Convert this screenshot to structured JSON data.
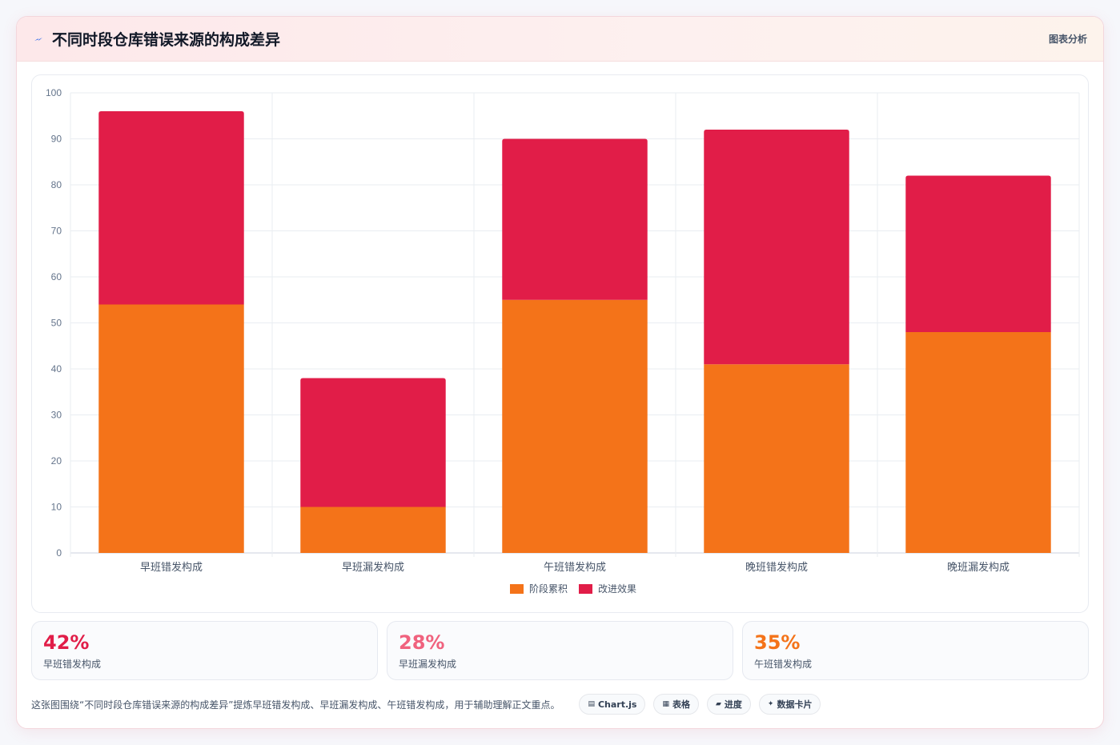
{
  "header": {
    "title": "不同时段仓库错误来源的构成差异",
    "tag": "图表分析",
    "accent": "#2563eb"
  },
  "chart_data": {
    "type": "bar",
    "stacked": true,
    "categories": [
      "早班错发构成",
      "早班漏发构成",
      "午班错发构成",
      "晚班错发构成",
      "晚班漏发构成"
    ],
    "series": [
      {
        "name": "阶段累积",
        "color": "#f47319",
        "values": [
          54,
          10,
          55,
          41,
          48
        ]
      },
      {
        "name": "改进效果",
        "color": "#e11d48",
        "values": [
          42,
          28,
          35,
          51,
          34
        ]
      }
    ],
    "ylim": [
      0,
      100
    ],
    "yticks": [
      0,
      10,
      20,
      30,
      40,
      50,
      60,
      70,
      80,
      90,
      100
    ],
    "grid": true,
    "legend": "bottom"
  },
  "stats": [
    {
      "value": "42%",
      "label": "早班错发构成",
      "color": "#e11d48"
    },
    {
      "value": "28%",
      "label": "早班漏发构成",
      "color": "#f0627e"
    },
    {
      "value": "35%",
      "label": "午班错发构成",
      "color": "#f47319"
    }
  ],
  "footer": {
    "text": "这张图围绕“不同时段仓库错误来源的构成差异”提炼早班错发构成、早班漏发构成、午班错发构成，用于辅助理解正文重点。",
    "chips": [
      {
        "icon": "▤",
        "icon_name": "chart-icon",
        "label": "Chart.js"
      },
      {
        "icon": "▦",
        "icon_name": "table-icon",
        "label": "表格"
      },
      {
        "icon": "▰",
        "icon_name": "progress-icon",
        "label": "进度"
      },
      {
        "icon": "✦",
        "icon_name": "sparkle-icon",
        "label": "数据卡片"
      }
    ]
  }
}
